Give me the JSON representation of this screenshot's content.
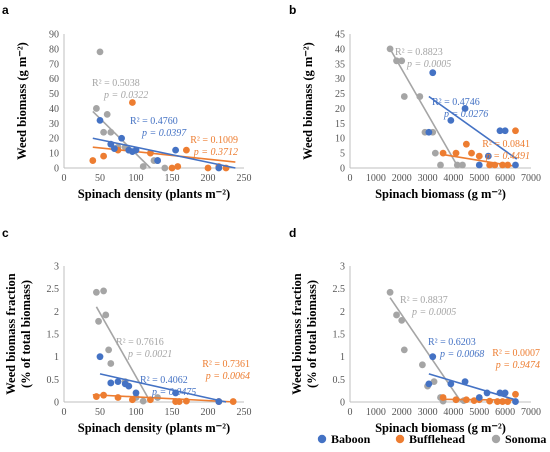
{
  "chart_data": [
    {
      "panel": "a",
      "type": "scatter",
      "xlabel": "Spinach density (plants m⁻²)",
      "ylabel": "Weed biomass (g m⁻²)",
      "xlim": [
        0,
        250
      ],
      "ylim": [
        0,
        90
      ],
      "xticks": [
        0,
        50,
        100,
        150,
        200,
        250
      ],
      "yticks": [
        0,
        10,
        20,
        30,
        40,
        50,
        60,
        70,
        80,
        90
      ],
      "series": [
        {
          "name": "Baboon",
          "points": [
            [
              50,
              32
            ],
            [
              65,
              16
            ],
            [
              70,
              13
            ],
            [
              80,
              20
            ],
            [
              90,
              12
            ],
            [
              95,
              11
            ],
            [
              100,
              12
            ],
            [
              130,
              5
            ],
            [
              155,
              12
            ],
            [
              215,
              0
            ]
          ],
          "trend": [
            [
              40,
              20
            ],
            [
              238,
              0
            ]
          ],
          "r2": "R² = 0.4760",
          "p": "p = 0.0397"
        },
        {
          "name": "Bufflehead",
          "points": [
            [
              40,
              5
            ],
            [
              55,
              8
            ],
            [
              75,
              12
            ],
            [
              95,
              44
            ],
            [
              120,
              10
            ],
            [
              150,
              0
            ],
            [
              158,
              1
            ],
            [
              170,
              12
            ],
            [
              200,
              0
            ],
            [
              215,
              1
            ],
            [
              225,
              0
            ]
          ],
          "trend": [
            [
              40,
              14
            ],
            [
              238,
              4
            ]
          ],
          "r2": "R² = 0.1009",
          "p": "p = 0.3712"
        },
        {
          "name": "Sonoma",
          "points": [
            [
              45,
              40
            ],
            [
              50,
              78
            ],
            [
              55,
              24
            ],
            [
              60,
              36
            ],
            [
              65,
              24
            ],
            [
              75,
              14
            ],
            [
              85,
              14
            ],
            [
              90,
              12
            ],
            [
              110,
              1
            ],
            [
              125,
              5
            ],
            [
              130,
              5
            ],
            [
              140,
              0
            ]
          ],
          "trend": [
            [
              40,
              38
            ],
            [
              120,
              0
            ]
          ],
          "r2": "R² = 0.5038",
          "p": "p = 0.0322"
        }
      ]
    },
    {
      "panel": "b",
      "type": "scatter",
      "xlabel": "Spinach biomass (g m⁻²)",
      "ylabel": "Weed biomass (g m⁻²)",
      "xlim": [
        0,
        7000
      ],
      "ylim": [
        0,
        45
      ],
      "xticks": [
        0,
        1000,
        2000,
        3000,
        4000,
        5000,
        6000,
        7000
      ],
      "yticks": [
        0,
        5,
        10,
        15,
        20,
        25,
        30,
        35,
        40,
        45
      ],
      "series": [
        {
          "name": "Baboon",
          "points": [
            [
              3050,
              12
            ],
            [
              3200,
              32
            ],
            [
              3900,
              16
            ],
            [
              4450,
              20
            ],
            [
              5000,
              1
            ],
            [
              5350,
              4
            ],
            [
              5800,
              12.5
            ],
            [
              6000,
              12.5
            ],
            [
              6400,
              1
            ]
          ],
          "trend": [
            [
              3050,
              24
            ],
            [
              6450,
              3
            ]
          ],
          "r2": "R² = 0.4746",
          "p": "p = 0.0276"
        },
        {
          "name": "Bufflehead",
          "points": [
            [
              3600,
              5
            ],
            [
              4100,
              5
            ],
            [
              4500,
              8
            ],
            [
              4700,
              5
            ],
            [
              5000,
              4
            ],
            [
              5400,
              1
            ],
            [
              5600,
              1
            ],
            [
              5900,
              1
            ],
            [
              6100,
              1
            ],
            [
              6400,
              12.5
            ]
          ],
          "trend": [
            [
              3600,
              4.5
            ],
            [
              6450,
              0.5
            ]
          ],
          "r2": "R² = 0.0841",
          "p": "p = 0.4491"
        },
        {
          "name": "Sonoma",
          "points": [
            [
              1550,
              40
            ],
            [
              1800,
              36
            ],
            [
              2000,
              36
            ],
            [
              2100,
              24
            ],
            [
              2700,
              24
            ],
            [
              2900,
              12
            ],
            [
              3200,
              12
            ],
            [
              3300,
              5
            ],
            [
              3500,
              1
            ],
            [
              4150,
              1
            ],
            [
              4350,
              1
            ]
          ],
          "trend": [
            [
              1550,
              40
            ],
            [
              4200,
              0
            ]
          ],
          "r2": "R² = 0.8823",
          "p": "p = 0.0005"
        }
      ]
    },
    {
      "panel": "c",
      "type": "scatter",
      "xlabel": "Spinach density (plants m⁻²)",
      "ylabel": "Weed biomass fraction (% of total biomass)",
      "xlim": [
        0,
        250
      ],
      "ylim": [
        0,
        3
      ],
      "xticks": [
        0,
        50,
        100,
        150,
        200,
        250
      ],
      "yticks": [
        0,
        0.5,
        1,
        1.5,
        2,
        2.5,
        3
      ],
      "yticklabels": [
        "0",
        "0.5",
        "1",
        "1.5",
        "2",
        "2.5",
        "3"
      ],
      "series": [
        {
          "name": "Baboon",
          "points": [
            [
              50,
              1.0
            ],
            [
              65,
              0.42
            ],
            [
              75,
              0.45
            ],
            [
              85,
              0.4
            ],
            [
              90,
              0.35
            ],
            [
              100,
              0.2
            ],
            [
              155,
              0.2
            ],
            [
              215,
              0.01
            ]
          ],
          "trend": [
            [
              50,
              0.62
            ],
            [
              225,
              0.0
            ]
          ],
          "r2": "R² = 0.4062",
          "p": "p = 0.0475"
        },
        {
          "name": "Bufflehead",
          "points": [
            [
              45,
              0.12
            ],
            [
              55,
              0.15
            ],
            [
              75,
              0.1
            ],
            [
              95,
              0.05
            ],
            [
              120,
              0.05
            ],
            [
              155,
              0.01
            ],
            [
              160,
              0.01
            ],
            [
              170,
              0.02
            ],
            [
              215,
              0.01
            ],
            [
              235,
              0.01
            ]
          ],
          "trend": [
            [
              40,
              0.16
            ],
            [
              238,
              0.0
            ]
          ],
          "r2": "R² = 0.7361",
          "p": "p = 0.0064"
        },
        {
          "name": "Sonoma",
          "points": [
            [
              45,
              2.42
            ],
            [
              48,
              1.78
            ],
            [
              55,
              2.45
            ],
            [
              58,
              1.92
            ],
            [
              62,
              1.15
            ],
            [
              65,
              0.85
            ],
            [
              85,
              0.45
            ],
            [
              100,
              0.1
            ],
            [
              110,
              0.02
            ],
            [
              130,
              0.1
            ]
          ],
          "trend": [
            [
              45,
              2.1
            ],
            [
              120,
              0.0
            ]
          ],
          "r2": "R² = 0.7616",
          "p": "p = 0.0021"
        }
      ]
    },
    {
      "panel": "d",
      "type": "scatter",
      "xlabel": "Spinach biomass (g m⁻²)",
      "ylabel": "Weed biomass fraction (% of total biomass)",
      "xlim": [
        0,
        7000
      ],
      "ylim": [
        0,
        3
      ],
      "xticks": [
        0,
        1000,
        2000,
        3000,
        4000,
        5000,
        6000,
        7000
      ],
      "yticks": [
        0,
        0.5,
        1,
        1.5,
        2,
        2.5,
        3
      ],
      "yticklabels": [
        "0",
        "0.5",
        "1",
        "1.5",
        "2",
        "2.5",
        "3"
      ],
      "series": [
        {
          "name": "Baboon",
          "points": [
            [
              3050,
              0.4
            ],
            [
              3200,
              1.0
            ],
            [
              3900,
              0.4
            ],
            [
              4450,
              0.45
            ],
            [
              5000,
              0.1
            ],
            [
              5300,
              0.2
            ],
            [
              5800,
              0.2
            ],
            [
              6000,
              0.2
            ],
            [
              6400,
              0.01
            ]
          ],
          "trend": [
            [
              3050,
              0.62
            ],
            [
              6450,
              0.04
            ]
          ],
          "r2": "R² = 0.6203",
          "p": "p = 0.0068"
        },
        {
          "name": "Bufflehead",
          "points": [
            [
              3600,
              0.1
            ],
            [
              4100,
              0.05
            ],
            [
              4500,
              0.05
            ],
            [
              4800,
              0.03
            ],
            [
              5000,
              0.05
            ],
            [
              5400,
              0.02
            ],
            [
              5700,
              0.01
            ],
            [
              5900,
              0.01
            ],
            [
              6100,
              0.01
            ],
            [
              6400,
              0.17
            ]
          ],
          "trend": [
            [
              3600,
              0.06
            ],
            [
              6450,
              0.04
            ]
          ],
          "r2": "R² = 0.0007",
          "p": "p = 0.9474"
        },
        {
          "name": "Sonoma",
          "points": [
            [
              1550,
              2.42
            ],
            [
              1800,
              1.92
            ],
            [
              2000,
              1.8
            ],
            [
              2100,
              1.15
            ],
            [
              2800,
              0.82
            ],
            [
              3000,
              0.35
            ],
            [
              3250,
              0.45
            ],
            [
              3500,
              0.1
            ],
            [
              3600,
              0.02
            ],
            [
              4100,
              0.05
            ],
            [
              4400,
              0.03
            ]
          ],
          "trend": [
            [
              1550,
              2.3
            ],
            [
              4300,
              0.0
            ]
          ],
          "r2": "R² = 0.8837",
          "p": "p = 0.0005"
        }
      ]
    }
  ],
  "colors": {
    "Baboon": "#4472c4",
    "Bufflehead": "#ed7d31",
    "Sonoma": "#a5a5a5"
  },
  "legend": {
    "placement": "bottom",
    "items": [
      {
        "name": "Baboon",
        "label": "Baboon"
      },
      {
        "name": "Bufflehead",
        "label": "Bufflehead"
      },
      {
        "name": "Sonoma",
        "label": "Sonoma"
      }
    ]
  }
}
